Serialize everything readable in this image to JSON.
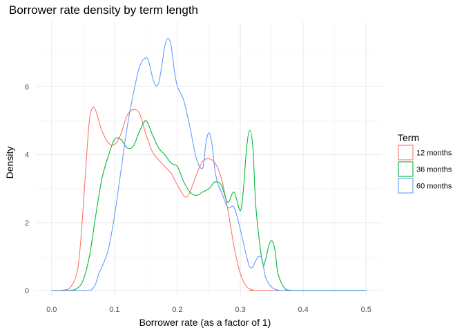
{
  "chart_data": {
    "type": "line",
    "title": "Borrower rate density by term length",
    "xlabel": "Borrower rate (as a factor of 1)",
    "ylabel": "Density",
    "xlim": [
      -0.025,
      0.525
    ],
    "ylim": [
      -0.2,
      7.9
    ],
    "x_ticks": [
      0.0,
      0.1,
      0.2,
      0.3,
      0.4,
      0.5
    ],
    "x_tick_labels": [
      "0.0",
      "0.1",
      "0.2",
      "0.3",
      "0.4",
      "0.5"
    ],
    "y_ticks": [
      0,
      2,
      4,
      6
    ],
    "y_tick_labels": [
      "0",
      "2",
      "4",
      "6"
    ],
    "grid": true,
    "legend": {
      "title": "Term",
      "position": "right"
    },
    "series": [
      {
        "name": "12 months",
        "color": "#F8766D",
        "points": [
          [
            0.0,
            0
          ],
          [
            0.01,
            0
          ],
          [
            0.02,
            0.02
          ],
          [
            0.03,
            0.1
          ],
          [
            0.04,
            0.5
          ],
          [
            0.045,
            1.2
          ],
          [
            0.05,
            2.4
          ],
          [
            0.055,
            3.8
          ],
          [
            0.06,
            5.0
          ],
          [
            0.065,
            5.38
          ],
          [
            0.07,
            5.3
          ],
          [
            0.075,
            5.0
          ],
          [
            0.08,
            4.7
          ],
          [
            0.09,
            4.35
          ],
          [
            0.1,
            4.3
          ],
          [
            0.11,
            4.6
          ],
          [
            0.12,
            5.15
          ],
          [
            0.13,
            5.33
          ],
          [
            0.14,
            5.2
          ],
          [
            0.15,
            4.6
          ],
          [
            0.16,
            4.1
          ],
          [
            0.17,
            3.85
          ],
          [
            0.18,
            3.65
          ],
          [
            0.19,
            3.45
          ],
          [
            0.2,
            3.1
          ],
          [
            0.21,
            2.8
          ],
          [
            0.215,
            2.76
          ],
          [
            0.22,
            2.9
          ],
          [
            0.23,
            3.4
          ],
          [
            0.24,
            3.8
          ],
          [
            0.25,
            3.88
          ],
          [
            0.26,
            3.75
          ],
          [
            0.27,
            3.3
          ],
          [
            0.28,
            2.4
          ],
          [
            0.29,
            1.3
          ],
          [
            0.3,
            0.5
          ],
          [
            0.31,
            0.12
          ],
          [
            0.32,
            0.02
          ],
          [
            0.33,
            0
          ],
          [
            0.5,
            0
          ]
        ]
      },
      {
        "name": "36 months",
        "color": "#00BA38",
        "points": [
          [
            0.0,
            0
          ],
          [
            0.02,
            0
          ],
          [
            0.03,
            0.01
          ],
          [
            0.04,
            0.06
          ],
          [
            0.05,
            0.3
          ],
          [
            0.06,
            1.0
          ],
          [
            0.07,
            2.2
          ],
          [
            0.08,
            3.3
          ],
          [
            0.09,
            3.95
          ],
          [
            0.1,
            4.45
          ],
          [
            0.11,
            4.45
          ],
          [
            0.12,
            4.2
          ],
          [
            0.13,
            4.25
          ],
          [
            0.14,
            4.7
          ],
          [
            0.15,
            5.0
          ],
          [
            0.16,
            4.6
          ],
          [
            0.17,
            4.2
          ],
          [
            0.18,
            4.0
          ],
          [
            0.19,
            3.75
          ],
          [
            0.2,
            3.65
          ],
          [
            0.21,
            3.2
          ],
          [
            0.22,
            2.9
          ],
          [
            0.23,
            2.8
          ],
          [
            0.24,
            2.9
          ],
          [
            0.25,
            3.0
          ],
          [
            0.26,
            3.2
          ],
          [
            0.27,
            3.1
          ],
          [
            0.28,
            2.6
          ],
          [
            0.29,
            2.9
          ],
          [
            0.3,
            2.35
          ],
          [
            0.305,
            3.0
          ],
          [
            0.31,
            4.2
          ],
          [
            0.315,
            4.72
          ],
          [
            0.32,
            4.2
          ],
          [
            0.325,
            2.4
          ],
          [
            0.335,
            0.85
          ],
          [
            0.34,
            0.9
          ],
          [
            0.345,
            1.3
          ],
          [
            0.35,
            1.47
          ],
          [
            0.355,
            1.2
          ],
          [
            0.36,
            0.5
          ],
          [
            0.37,
            0.08
          ],
          [
            0.38,
            0.01
          ],
          [
            0.39,
            0
          ],
          [
            0.5,
            0
          ]
        ]
      },
      {
        "name": "60 months",
        "color": "#619CFF",
        "points": [
          [
            0.0,
            0
          ],
          [
            0.05,
            0
          ],
          [
            0.06,
            0.01
          ],
          [
            0.065,
            0.05
          ],
          [
            0.07,
            0.2
          ],
          [
            0.075,
            0.5
          ],
          [
            0.08,
            0.7
          ],
          [
            0.09,
            1.2
          ],
          [
            0.1,
            2.2
          ],
          [
            0.11,
            3.5
          ],
          [
            0.12,
            4.8
          ],
          [
            0.13,
            5.8
          ],
          [
            0.14,
            6.6
          ],
          [
            0.15,
            6.85
          ],
          [
            0.155,
            6.7
          ],
          [
            0.16,
            6.3
          ],
          [
            0.165,
            6.05
          ],
          [
            0.17,
            6.1
          ],
          [
            0.175,
            6.6
          ],
          [
            0.18,
            7.2
          ],
          [
            0.185,
            7.42
          ],
          [
            0.19,
            7.2
          ],
          [
            0.195,
            6.5
          ],
          [
            0.2,
            6.0
          ],
          [
            0.21,
            5.6
          ],
          [
            0.22,
            4.8
          ],
          [
            0.23,
            3.9
          ],
          [
            0.24,
            3.6
          ],
          [
            0.245,
            4.3
          ],
          [
            0.25,
            4.65
          ],
          [
            0.255,
            4.3
          ],
          [
            0.26,
            3.5
          ],
          [
            0.265,
            3.1
          ],
          [
            0.27,
            2.9
          ],
          [
            0.28,
            2.45
          ],
          [
            0.29,
            2.45
          ],
          [
            0.3,
            1.8
          ],
          [
            0.31,
            1.0
          ],
          [
            0.315,
            0.7
          ],
          [
            0.32,
            0.7
          ],
          [
            0.325,
            0.9
          ],
          [
            0.33,
            1.02
          ],
          [
            0.335,
            0.9
          ],
          [
            0.34,
            0.4
          ],
          [
            0.35,
            0.1
          ],
          [
            0.36,
            0.02
          ],
          [
            0.37,
            0
          ],
          [
            0.5,
            0
          ]
        ]
      }
    ]
  }
}
